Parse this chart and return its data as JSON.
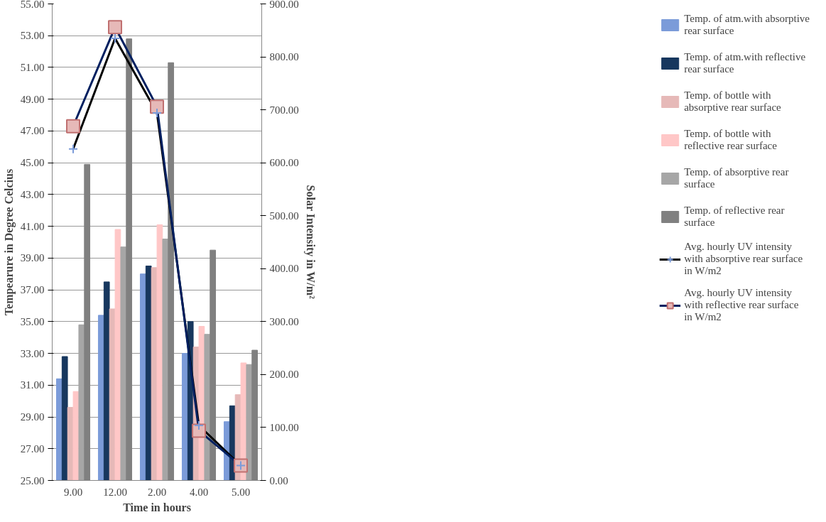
{
  "chart_data": {
    "type": "bar",
    "xlabel": "Time in hours",
    "ylabel": "Tempearure in Degree Celcius",
    "y2label": "Solar Intensity in W/m²",
    "categories": [
      "9.00",
      "12.00",
      "2.00",
      "4.00",
      "5.00"
    ],
    "series": [
      {
        "name": "Temp. of atm.with absorptive rear surface",
        "color": "#7b9bd9",
        "values": [
          31.4,
          35.4,
          38.0,
          33.0,
          28.7
        ]
      },
      {
        "name": "Temp. of atm.with reflective rear surface",
        "color": "#17375e",
        "values": [
          32.8,
          37.5,
          38.5,
          35.0,
          29.7
        ]
      },
      {
        "name": "Temp. of bottle with absorptive rear surface",
        "color": "#e6b9b8",
        "values": [
          29.6,
          35.8,
          38.4,
          33.4,
          30.4
        ]
      },
      {
        "name": "Temp. of bottle with reflective rear surface",
        "color": "#ffc7c7",
        "values": [
          30.6,
          40.8,
          41.1,
          34.7,
          32.4
        ]
      },
      {
        "name": "Temp. of absorptive rear surface",
        "color": "#a6a6a6",
        "values": [
          34.8,
          39.7,
          40.2,
          34.2,
          32.3
        ]
      },
      {
        "name": "Temp. of reflective rear surface",
        "color": "#808080",
        "values": [
          44.9,
          52.8,
          51.3,
          39.5,
          33.2
        ]
      },
      {
        "name": "Avg. hourly UV intensity with absorptive rear surface in W/m2",
        "type": "line",
        "axis": "y2",
        "marker": "cross",
        "color": "#000000",
        "values": [
          626,
          835,
          694,
          104,
          28
        ]
      },
      {
        "name": "Avg. hourly UV intensity with reflective rear surface in W/m2",
        "type": "line",
        "axis": "y2",
        "marker": "square",
        "color": "#002060",
        "values": [
          669,
          856,
          706,
          94,
          28
        ]
      }
    ],
    "ylim": [
      25,
      55
    ],
    "yticks": [
      {
        "value": 25,
        "label": "25.00"
      },
      {
        "value": 27,
        "label": "27.00"
      },
      {
        "value": 29,
        "label": "29.00"
      },
      {
        "value": 31,
        "label": "31.00"
      },
      {
        "value": 33,
        "label": "33.00"
      },
      {
        "value": 35,
        "label": "35.00"
      },
      {
        "value": 37,
        "label": "37.00"
      },
      {
        "value": 39,
        "label": "39.00"
      },
      {
        "value": 41,
        "label": "41.00"
      },
      {
        "value": 43,
        "label": "43.00"
      },
      {
        "value": 45,
        "label": "45.00"
      },
      {
        "value": 47,
        "label": "47.00"
      },
      {
        "value": 49,
        "label": "49.00"
      },
      {
        "value": 51,
        "label": "51.00"
      },
      {
        "value": 53,
        "label": "53.00"
      },
      {
        "value": 55,
        "label": "55.00"
      }
    ],
    "y2lim": [
      0,
      900
    ],
    "y2ticks": [
      {
        "value": 0,
        "label": "0.00"
      },
      {
        "value": 100,
        "label": "100.00"
      },
      {
        "value": 200,
        "label": "200.00"
      },
      {
        "value": 300,
        "label": "300.00"
      },
      {
        "value": 400,
        "label": "400.00"
      },
      {
        "value": 500,
        "label": "500.00"
      },
      {
        "value": 600,
        "label": "600.00"
      },
      {
        "value": 700,
        "label": "700.00"
      },
      {
        "value": 800,
        "label": "800.00"
      },
      {
        "value": 900,
        "label": "900.00"
      }
    ],
    "grid": "y",
    "legend": "right"
  }
}
